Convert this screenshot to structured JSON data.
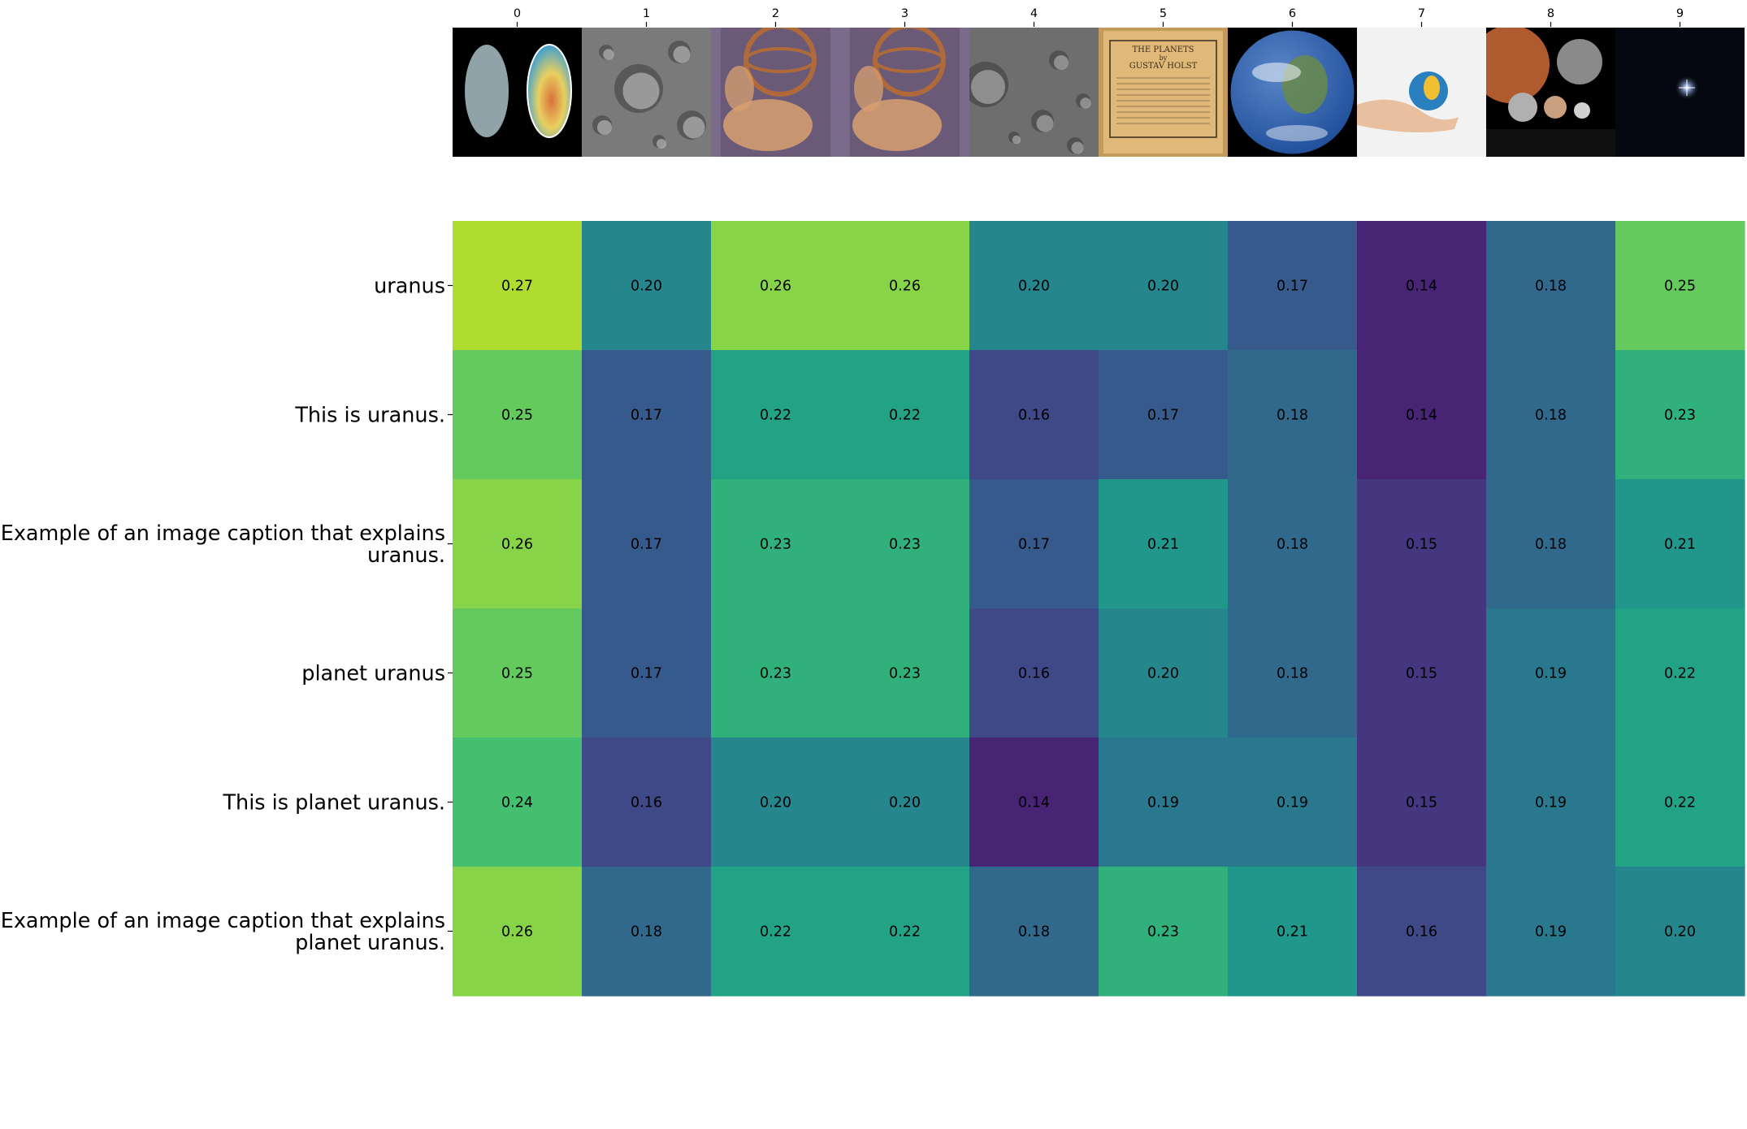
{
  "chart_data": {
    "type": "heatmap",
    "colormap": "viridis",
    "value_format": "2 decimals",
    "columns": [
      "0",
      "1",
      "2",
      "3",
      "4",
      "5",
      "6",
      "7",
      "8",
      "9"
    ],
    "column_images": [
      {
        "description": "two renderings of Uranus: gray disk and false-color heat map",
        "colors": [
          "#000000",
          "#8fa3a8",
          "#3fa0d0",
          "#d8703a"
        ]
      },
      {
        "description": "gray cratered lunar surface",
        "colors": [
          "#7a7a7a",
          "#b5b5b5",
          "#3c3c3c"
        ]
      },
      {
        "description": "painted artwork of figures beneath an armillary sphere",
        "colors": [
          "#6a5a78",
          "#b06a3a",
          "#d8a070"
        ]
      },
      {
        "description": "painted artwork of figures beneath an armillary sphere",
        "colors": [
          "#6a5a78",
          "#b06a3a",
          "#d8a070"
        ]
      },
      {
        "description": "gray cratered lunar surface",
        "colors": [
          "#6e6e6e",
          "#a8a8a8",
          "#3a3a3a"
        ]
      },
      {
        "description": "aged cover of The Planets by Gustav Holst",
        "colors": [
          "#e0b878",
          "#c49a5a",
          "#3a2a1a"
        ],
        "text": [
          "THE PLANETS",
          "by",
          "GUSTAV HOLST"
        ]
      },
      {
        "description": "Earth seen from space",
        "colors": [
          "#000000",
          "#1f4e9a",
          "#e8eef5",
          "#6a8a4a"
        ]
      },
      {
        "description": "hand holding a small globe",
        "colors": [
          "#f2f2f2",
          "#e8c0a0",
          "#2a7fbf",
          "#f0c030"
        ]
      },
      {
        "description": "Mars and moons group on dark background",
        "colors": [
          "#000000",
          "#b05a30",
          "#8a8a8a",
          "#c8a080"
        ]
      },
      {
        "description": "single bright star in dark space",
        "colors": [
          "#000000",
          "#0a1020",
          "#ffffff"
        ]
      }
    ],
    "rows": [
      "uranus",
      "This is uranus.",
      "Example of an image caption that explains uranus.",
      "planet uranus",
      "This is planet uranus.",
      "Example of an image caption that explains planet uranus."
    ],
    "row_label_lines": [
      [
        "uranus"
      ],
      [
        "This is uranus."
      ],
      [
        "Example of an image caption that explains",
        "uranus."
      ],
      [
        "planet uranus"
      ],
      [
        "This is planet uranus."
      ],
      [
        "Example of an image caption that explains",
        "planet uranus."
      ]
    ],
    "values": [
      [
        0.27,
        0.2,
        0.26,
        0.26,
        0.2,
        0.2,
        0.17,
        0.14,
        0.18,
        0.25
      ],
      [
        0.25,
        0.17,
        0.22,
        0.22,
        0.16,
        0.17,
        0.18,
        0.14,
        0.18,
        0.23
      ],
      [
        0.26,
        0.17,
        0.23,
        0.23,
        0.17,
        0.21,
        0.18,
        0.15,
        0.18,
        0.21
      ],
      [
        0.25,
        0.17,
        0.23,
        0.23,
        0.16,
        0.2,
        0.18,
        0.15,
        0.19,
        0.22
      ],
      [
        0.24,
        0.16,
        0.2,
        0.2,
        0.14,
        0.19,
        0.19,
        0.15,
        0.19,
        0.22
      ],
      [
        0.26,
        0.18,
        0.22,
        0.22,
        0.18,
        0.23,
        0.21,
        0.16,
        0.19,
        0.2
      ]
    ]
  }
}
